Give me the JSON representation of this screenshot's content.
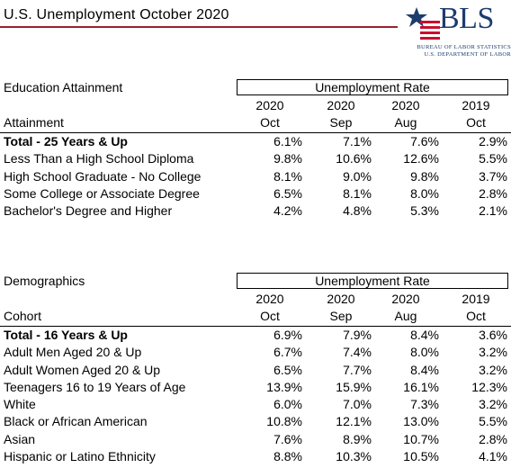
{
  "title": "U.S. Unemployment October 2020",
  "logo": {
    "text": "BLS",
    "line1": "BUREAU OF LABOR STATISTICS",
    "line2": "U.S. DEPARTMENT OF LABOR",
    "colors": {
      "navy": "#1d3c6e",
      "red": "#c8102e"
    }
  },
  "rule_color": "#9c1f2e",
  "education": {
    "section_label": "Education Attainment",
    "rate_header": "Unemployment Rate",
    "column_title": "Attainment",
    "years": [
      "2020",
      "2020",
      "2020",
      "2019"
    ],
    "months": [
      "Oct",
      "Sep",
      "Aug",
      "Oct"
    ],
    "rows": [
      {
        "label": "Total - 25 Years & Up",
        "values": [
          "6.1%",
          "7.1%",
          "7.6%",
          "2.9%"
        ]
      },
      {
        "label": "Less Than a High School Diploma",
        "values": [
          "9.8%",
          "10.6%",
          "12.6%",
          "5.5%"
        ]
      },
      {
        "label": "High School Graduate - No College",
        "values": [
          "8.1%",
          "9.0%",
          "9.8%",
          "3.7%"
        ]
      },
      {
        "label": "Some College or Associate Degree",
        "values": [
          "6.5%",
          "8.1%",
          "8.0%",
          "2.8%"
        ]
      },
      {
        "label": "Bachelor's Degree and Higher",
        "values": [
          "4.2%",
          "4.8%",
          "5.3%",
          "2.1%"
        ]
      }
    ]
  },
  "demographics": {
    "section_label": "Demographics",
    "rate_header": "Unemployment Rate",
    "column_title": "Cohort",
    "years": [
      "2020",
      "2020",
      "2020",
      "2019"
    ],
    "months": [
      "Oct",
      "Sep",
      "Aug",
      "Oct"
    ],
    "rows": [
      {
        "label": "Total - 16 Years & Up",
        "values": [
          "6.9%",
          "7.9%",
          "8.4%",
          "3.6%"
        ]
      },
      {
        "label": "Adult Men Aged 20 & Up",
        "values": [
          "6.7%",
          "7.4%",
          "8.0%",
          "3.2%"
        ]
      },
      {
        "label": "Adult Women Aged 20 & Up",
        "values": [
          "6.5%",
          "7.7%",
          "8.4%",
          "3.2%"
        ]
      },
      {
        "label": "Teenagers 16 to 19 Years of Age",
        "values": [
          "13.9%",
          "15.9%",
          "16.1%",
          "12.3%"
        ]
      },
      {
        "label": "White",
        "values": [
          "6.0%",
          "7.0%",
          "7.3%",
          "3.2%"
        ]
      },
      {
        "label": "Black or African American",
        "values": [
          "10.8%",
          "12.1%",
          "13.0%",
          "5.5%"
        ]
      },
      {
        "label": "Asian",
        "values": [
          "7.6%",
          "8.9%",
          "10.7%",
          "2.8%"
        ]
      },
      {
        "label": "Hispanic or Latino Ethnicity",
        "values": [
          "8.8%",
          "10.3%",
          "10.5%",
          "4.1%"
        ]
      }
    ]
  }
}
